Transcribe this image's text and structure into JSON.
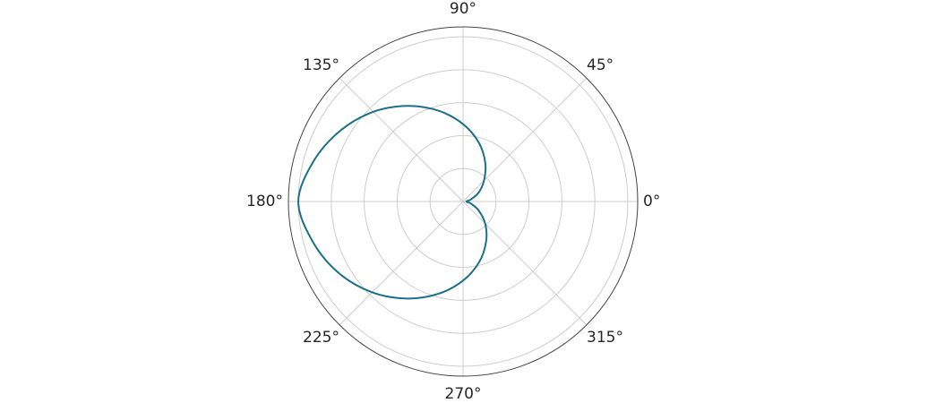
{
  "chart_data": {
    "type": "line",
    "projection": "polar",
    "theta_unit": "degrees",
    "theta_ticks": [
      {
        "angle": 0,
        "label": "0°"
      },
      {
        "angle": 45,
        "label": "45°"
      },
      {
        "angle": 90,
        "label": "90°"
      },
      {
        "angle": 135,
        "label": "135°"
      },
      {
        "angle": 180,
        "label": "180°"
      },
      {
        "angle": 225,
        "label": "225°"
      },
      {
        "angle": 270,
        "label": "270°"
      },
      {
        "angle": 315,
        "label": "315°"
      }
    ],
    "r_ticks": [
      1,
      2,
      3,
      4,
      5
    ],
    "r_tick_labels_visible": false,
    "rlim": [
      0,
      5.3
    ],
    "grid": true,
    "series": [
      {
        "color": "#1a6f8a",
        "theta": [
          0,
          15,
          30,
          45,
          60,
          75,
          90,
          105,
          120,
          135,
          150,
          165,
          180,
          195,
          210,
          225,
          240,
          255,
          270,
          285,
          300,
          315,
          330,
          345,
          360
        ],
        "r": [
          0.1,
          0.25,
          0.55,
          0.9,
          1.35,
          1.85,
          2.35,
          2.85,
          3.35,
          3.85,
          4.3,
          4.7,
          5.0,
          4.72,
          4.35,
          3.9,
          3.4,
          2.9,
          2.4,
          1.9,
          1.4,
          0.95,
          0.55,
          0.25,
          0.1
        ]
      }
    ]
  }
}
